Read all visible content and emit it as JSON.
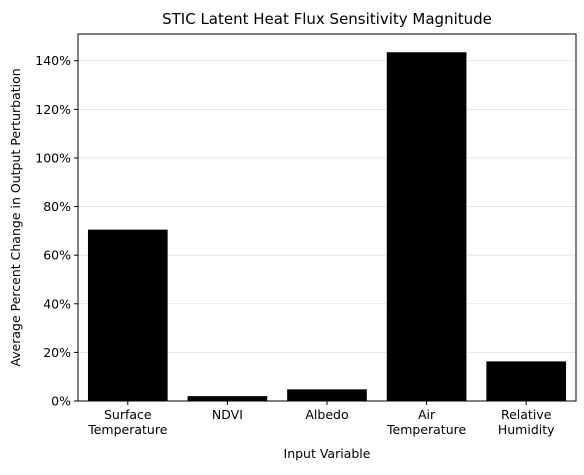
{
  "chart_data": {
    "type": "bar",
    "title": "STIC Latent Heat Flux Sensitivity Magnitude",
    "xlabel": "Input Variable",
    "ylabel": "Average Percent Change in Output Perturbation",
    "categories": [
      [
        "Surface",
        "Temperature"
      ],
      [
        "NDVI"
      ],
      [
        "Albedo"
      ],
      [
        "Air",
        "Temperature"
      ],
      [
        "Relative",
        "Humidity"
      ]
    ],
    "values": [
      70.5,
      2.0,
      4.8,
      143.5,
      16.3
    ],
    "ylim": [
      0,
      151
    ],
    "yticks": [
      0,
      20,
      40,
      60,
      80,
      100,
      120,
      140
    ],
    "ytick_suffix": "%",
    "grid": "horizontal",
    "bar_color": "#000000",
    "grid_color": "#e0e0e0"
  }
}
